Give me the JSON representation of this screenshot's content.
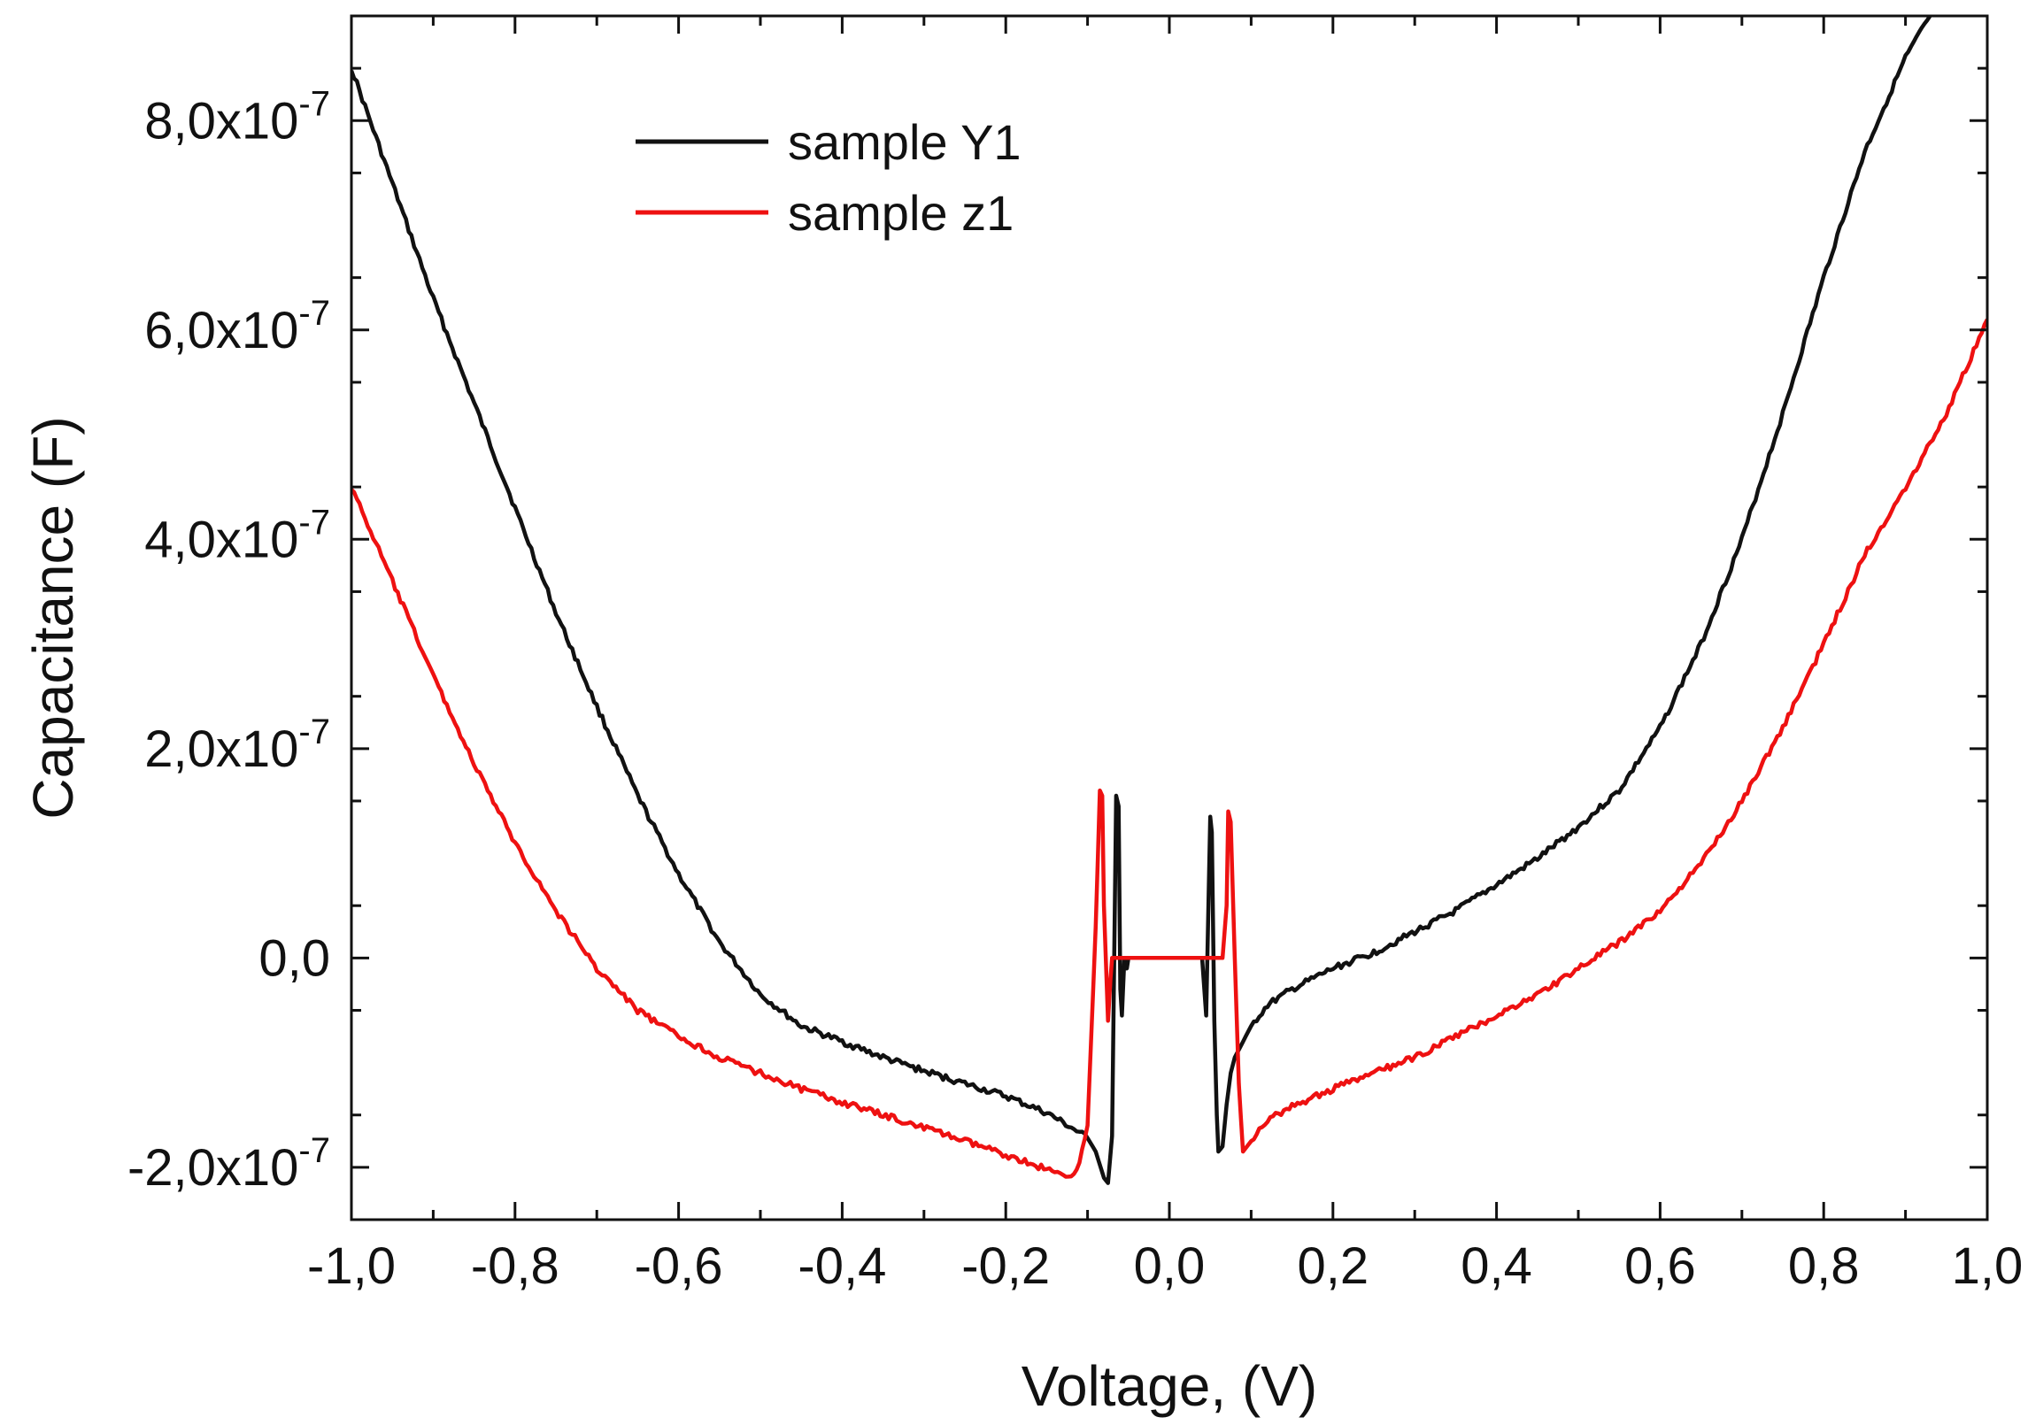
{
  "chart_data": {
    "type": "line",
    "title": "",
    "xlabel": "Voltage, (V)",
    "ylabel": "Capacitance (F)",
    "xlim": [
      -1.0,
      1.0
    ],
    "ylim": [
      -2.5e-07,
      9e-07
    ],
    "x_ticks": [
      -1.0,
      -0.8,
      -0.6,
      -0.4,
      -0.2,
      0.0,
      0.2,
      0.4,
      0.6,
      0.8,
      1.0
    ],
    "x_tick_labels": [
      "-1,0",
      "-0,8",
      "-0,6",
      "-0,4",
      "-0,2",
      "0,0",
      "0,2",
      "0,4",
      "0,6",
      "0,8",
      "1,0"
    ],
    "y_ticks": [
      -2e-07,
      0.0,
      2e-07,
      4e-07,
      6e-07,
      8e-07
    ],
    "y_tick_labels": [
      {
        "mantissa": "-2,0x10",
        "exponent": "-7"
      },
      {
        "mantissa": "0,0",
        "exponent": ""
      },
      {
        "mantissa": "2,0x10",
        "exponent": "-7"
      },
      {
        "mantissa": "4,0x10",
        "exponent": "-7"
      },
      {
        "mantissa": "6,0x10",
        "exponent": "-7"
      },
      {
        "mantissa": "8,0x10",
        "exponent": "-7"
      }
    ],
    "grid": false,
    "legend_position": "top-left",
    "series": [
      {
        "name": "sample Y1",
        "color": "#111111",
        "x": [
          -1.0,
          -0.95,
          -0.9,
          -0.85,
          -0.8,
          -0.75,
          -0.7,
          -0.65,
          -0.6,
          -0.55,
          -0.5,
          -0.45,
          -0.4,
          -0.35,
          -0.3,
          -0.25,
          -0.2,
          -0.15,
          -0.12,
          -0.1,
          -0.09,
          -0.08,
          -0.075,
          -0.07,
          -0.065,
          -0.062,
          -0.06,
          -0.058,
          -0.055,
          -0.052,
          -0.05,
          -0.045,
          -0.04,
          0.0,
          0.04,
          0.045,
          0.05,
          0.052,
          0.055,
          0.058,
          0.06,
          0.065,
          0.07,
          0.075,
          0.08,
          0.09,
          0.1,
          0.12,
          0.15,
          0.2,
          0.25,
          0.3,
          0.35,
          0.4,
          0.45,
          0.5,
          0.55,
          0.6,
          0.65,
          0.7,
          0.75,
          0.8,
          0.85,
          0.9,
          0.93
        ],
        "y": [
          8.5e-07,
          7.4e-07,
          6.3e-07,
          5.3e-07,
          4.3e-07,
          3.3e-07,
          2.4e-07,
          1.55e-07,
          8e-08,
          1.5e-08,
          -3.5e-08,
          -6.5e-08,
          -8e-08,
          -9.5e-08,
          -1.08e-07,
          -1.2e-07,
          -1.32e-07,
          -1.48e-07,
          -1.62e-07,
          -1.72e-07,
          -1.85e-07,
          -2.1e-07,
          -2.15e-07,
          -1.7e-07,
          1.55e-07,
          1.45e-07,
          -3e-08,
          -5.5e-08,
          0.0,
          -1e-08,
          0.0,
          0.0,
          0.0,
          0.0,
          0.0,
          -5.5e-08,
          1.35e-07,
          1.2e-07,
          -6e-08,
          -1.5e-07,
          -1.85e-07,
          -1.8e-07,
          -1.4e-07,
          -1.1e-07,
          -9.5e-08,
          -8e-08,
          -6.5e-08,
          -4.5e-08,
          -3e-08,
          -1e-08,
          5e-09,
          2.5e-08,
          4.5e-08,
          7e-08,
          9.5e-08,
          1.25e-07,
          1.6e-07,
          2.2e-07,
          3e-07,
          4e-07,
          5.2e-07,
          6.5e-07,
          7.7e-07,
          8.6e-07,
          9e-07
        ]
      },
      {
        "name": "sample z1",
        "color": "#ee1111",
        "x": [
          -1.0,
          -0.95,
          -0.9,
          -0.85,
          -0.8,
          -0.75,
          -0.7,
          -0.65,
          -0.6,
          -0.55,
          -0.5,
          -0.45,
          -0.4,
          -0.35,
          -0.3,
          -0.25,
          -0.2,
          -0.15,
          -0.13,
          -0.12,
          -0.11,
          -0.1,
          -0.09,
          -0.085,
          -0.082,
          -0.08,
          -0.075,
          -0.072,
          -0.07,
          -0.065,
          -0.06,
          0.0,
          0.06,
          0.065,
          0.07,
          0.072,
          0.075,
          0.08,
          0.085,
          0.09,
          0.1,
          0.12,
          0.15,
          0.2,
          0.25,
          0.3,
          0.35,
          0.4,
          0.45,
          0.5,
          0.55,
          0.6,
          0.65,
          0.7,
          0.75,
          0.8,
          0.85,
          0.9,
          0.95,
          1.0
        ],
        "y": [
          4.5e-07,
          3.6e-07,
          2.7e-07,
          1.85e-07,
          1.1e-07,
          4.5e-08,
          -1e-08,
          -5e-08,
          -7.5e-08,
          -9.5e-08,
          -1.1e-07,
          -1.25e-07,
          -1.38e-07,
          -1.5e-07,
          -1.62e-07,
          -1.75e-07,
          -1.88e-07,
          -2.02e-07,
          -2.08e-07,
          -2.08e-07,
          -1.95e-07,
          -1.6e-07,
          3e-08,
          1.6e-07,
          1.55e-07,
          5e-08,
          -6e-08,
          -2e-08,
          0.0,
          0.0,
          0.0,
          0.0,
          0.0,
          0.0,
          5e-08,
          1.4e-07,
          1.3e-07,
          0.0,
          -1.2e-07,
          -1.85e-07,
          -1.75e-07,
          -1.55e-07,
          -1.42e-07,
          -1.25e-07,
          -1.1e-07,
          -9.5e-08,
          -7.5e-08,
          -5.5e-08,
          -3.5e-08,
          -1e-08,
          1.5e-08,
          4.5e-08,
          9e-08,
          1.5e-07,
          2.2e-07,
          3e-07,
          3.85e-07,
          4.5e-07,
          5.2e-07,
          6.1e-07
        ]
      }
    ]
  }
}
